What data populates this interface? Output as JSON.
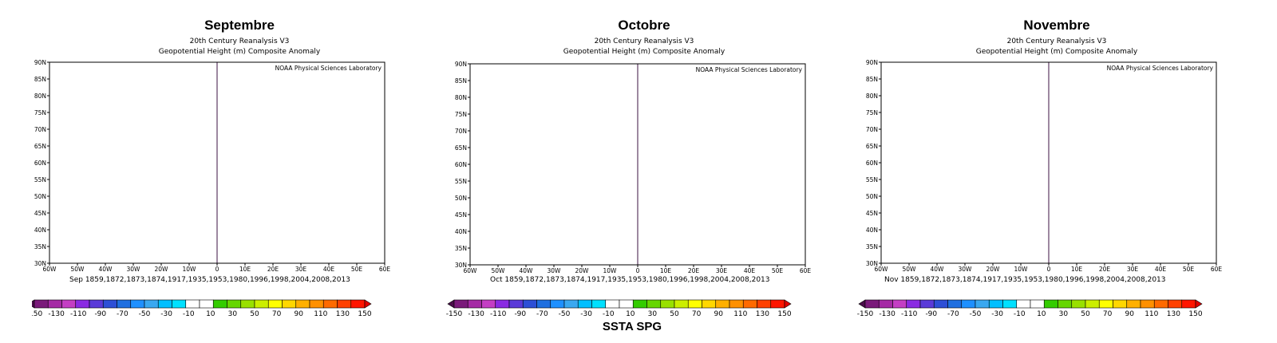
{
  "panels": [
    {
      "month": "Septembre",
      "subtitle1": "20th Century Reanalysis V3",
      "subtitle2": "Geopotential Height (m) Composite Anomaly",
      "lab_label": "NOAA Physical Sciences Laboratory",
      "footer": "Sep 1859,1872,1873,1874,1917,1935,1953,1980,1996,1998,2004,2008,2013"
    },
    {
      "month": "Octobre",
      "subtitle1": "20th Century Reanalysis V3",
      "subtitle2": "Geopotential Height (m) Composite Anomaly",
      "lab_label": "NOAA Physical Sciences Laboratory",
      "footer": "Oct 1859,1872,1873,1874,1917,1935,1953,1980,1996,1998,2004,2008,2013"
    },
    {
      "month": "Novembre",
      "subtitle1": "20th Century Reanalysis V3",
      "subtitle2": "Geopotential Height (m) Composite Anomaly",
      "lab_label": "NOAA Physical Sciences Laboratory",
      "footer": "Nov 1859,1872,1873,1874,1917,1935,1953,1980,1996,1998,2004,2008,2013"
    }
  ],
  "lat_labels": [
    "90N",
    "85N",
    "80N",
    "75N",
    "70N",
    "65N",
    "60N",
    "55N",
    "50N",
    "45N",
    "40N",
    "35N",
    "30N"
  ],
  "lon_labels": [
    "60W",
    "50W",
    "40W",
    "30W",
    "20W",
    "10W",
    "0",
    "10E",
    "20E",
    "30E",
    "40E",
    "50E",
    "60E"
  ],
  "colorbar": {
    "ticks": [
      "-150",
      "-130",
      "-110",
      "-90",
      "-70",
      "-50",
      "-30",
      "-10",
      "10",
      "30",
      "50",
      "70",
      "90",
      "110",
      "130",
      "150"
    ],
    "colors": [
      "#4a0d4a",
      "#7a1a7a",
      "#a52aa5",
      "#c43ec4",
      "#8a2be2",
      "#5a3ad8",
      "#2d4fd6",
      "#1f6fe0",
      "#1e90ff",
      "#3aa8f0",
      "#00bfff",
      "#00e0ff",
      "#ffffff",
      "#ffffff",
      "#33cc00",
      "#66d600",
      "#99e000",
      "#ccee00",
      "#ffff00",
      "#ffd700",
      "#ffb000",
      "#ff9000",
      "#ff6a00",
      "#ff4000",
      "#ff1500",
      "#e00000"
    ]
  },
  "bottom_label": "SSTA SPG"
}
